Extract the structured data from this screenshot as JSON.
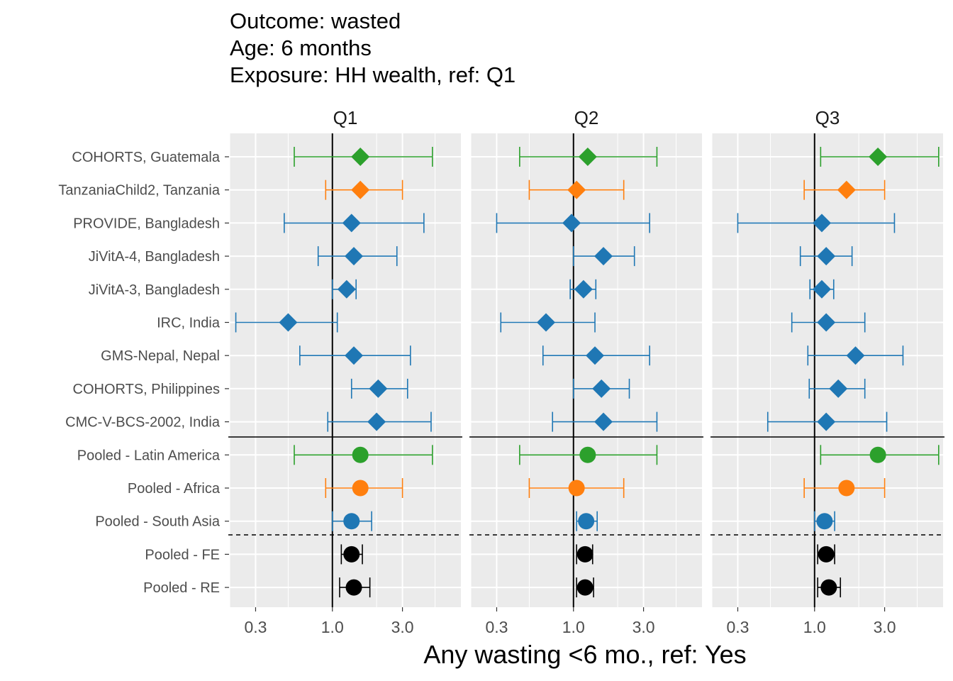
{
  "chart_data": {
    "type": "forest",
    "title_lines": [
      "Outcome: wasted",
      "Age: 6 months",
      "Exposure: HH wealth, ref: Q1"
    ],
    "xlabel": "Any wasting  <6 mo., ref: Yes",
    "ylabel": "",
    "x_scale": "log10",
    "xlim": [
      0.2,
      7.5
    ],
    "x_ticks": [
      {
        "value": 0.3,
        "label": "0.3"
      },
      {
        "value": 1.0,
        "label": "1.0"
      },
      {
        "value": 3.0,
        "label": "3.0"
      }
    ],
    "reference_line": 1.0,
    "grid": true,
    "rows": [
      {
        "label": "COHORTS, Guatemala",
        "region": "latin_america",
        "kind": "study"
      },
      {
        "label": "TanzaniaChild2, Tanzania",
        "region": "africa",
        "kind": "study"
      },
      {
        "label": "PROVIDE, Bangladesh",
        "region": "south_asia",
        "kind": "study"
      },
      {
        "label": "JiVitA-4, Bangladesh",
        "region": "south_asia",
        "kind": "study"
      },
      {
        "label": "JiVitA-3, Bangladesh",
        "region": "south_asia",
        "kind": "study"
      },
      {
        "label": "IRC, India",
        "region": "south_asia",
        "kind": "study"
      },
      {
        "label": "GMS-Nepal, Nepal",
        "region": "south_asia",
        "kind": "study"
      },
      {
        "label": "COHORTS, Philippines",
        "region": "south_asia",
        "kind": "study"
      },
      {
        "label": "CMC-V-BCS-2002, India",
        "region": "south_asia",
        "kind": "study"
      },
      {
        "label": "Pooled - Latin America",
        "region": "latin_america",
        "kind": "pooled"
      },
      {
        "label": "Pooled - Africa",
        "region": "africa",
        "kind": "pooled"
      },
      {
        "label": "Pooled - South Asia",
        "region": "south_asia",
        "kind": "pooled"
      },
      {
        "label": "Pooled - FE",
        "region": "overall",
        "kind": "pooled"
      },
      {
        "label": "Pooled - RE",
        "region": "overall",
        "kind": "pooled"
      }
    ],
    "colors": {
      "latin_america": "#2ca02c",
      "africa": "#ff7f0e",
      "south_asia": "#1f77b4",
      "overall": "#000000"
    },
    "panel_background": "#ebebeb",
    "grid_color": "#ffffff",
    "panels": [
      {
        "label": "Q1",
        "estimates": [
          {
            "est": 1.55,
            "lo": 0.55,
            "hi": 4.8
          },
          {
            "est": 1.55,
            "lo": 0.9,
            "hi": 3.0
          },
          {
            "est": 1.35,
            "lo": 0.47,
            "hi": 4.2
          },
          {
            "est": 1.4,
            "lo": 0.8,
            "hi": 2.75
          },
          {
            "est": 1.25,
            "lo": 1.0,
            "hi": 1.45
          },
          {
            "est": 0.5,
            "lo": 0.22,
            "hi": 1.08
          },
          {
            "est": 1.4,
            "lo": 0.6,
            "hi": 3.4
          },
          {
            "est": 2.05,
            "lo": 1.35,
            "hi": 3.25
          },
          {
            "est": 2.0,
            "lo": 0.93,
            "hi": 4.7
          },
          {
            "est": 1.55,
            "lo": 0.55,
            "hi": 4.8
          },
          {
            "est": 1.55,
            "lo": 0.9,
            "hi": 3.0
          },
          {
            "est": 1.35,
            "lo": 1.0,
            "hi": 1.85
          },
          {
            "est": 1.35,
            "lo": 1.15,
            "hi": 1.6
          },
          {
            "est": 1.4,
            "lo": 1.12,
            "hi": 1.8
          }
        ]
      },
      {
        "label": "Q2",
        "estimates": [
          {
            "est": 1.25,
            "lo": 0.43,
            "hi": 3.7
          },
          {
            "est": 1.05,
            "lo": 0.5,
            "hi": 2.2
          },
          {
            "est": 0.97,
            "lo": 0.3,
            "hi": 3.3
          },
          {
            "est": 1.6,
            "lo": 1.0,
            "hi": 2.6
          },
          {
            "est": 1.17,
            "lo": 0.95,
            "hi": 1.42
          },
          {
            "est": 0.65,
            "lo": 0.32,
            "hi": 1.4
          },
          {
            "est": 1.4,
            "lo": 0.62,
            "hi": 3.3
          },
          {
            "est": 1.55,
            "lo": 1.0,
            "hi": 2.4
          },
          {
            "est": 1.6,
            "lo": 0.72,
            "hi": 3.7
          },
          {
            "est": 1.25,
            "lo": 0.43,
            "hi": 3.7
          },
          {
            "est": 1.05,
            "lo": 0.5,
            "hi": 2.2
          },
          {
            "est": 1.22,
            "lo": 1.05,
            "hi": 1.45
          },
          {
            "est": 1.2,
            "lo": 1.05,
            "hi": 1.35
          },
          {
            "est": 1.2,
            "lo": 1.05,
            "hi": 1.37
          }
        ]
      },
      {
        "label": "Q3",
        "estimates": [
          {
            "est": 2.7,
            "lo": 1.1,
            "hi": 7.0
          },
          {
            "est": 1.65,
            "lo": 0.85,
            "hi": 3.0
          },
          {
            "est": 1.12,
            "lo": 0.3,
            "hi": 3.5
          },
          {
            "est": 1.2,
            "lo": 0.8,
            "hi": 1.8
          },
          {
            "est": 1.12,
            "lo": 0.93,
            "hi": 1.35
          },
          {
            "est": 1.2,
            "lo": 0.7,
            "hi": 2.2
          },
          {
            "est": 1.9,
            "lo": 0.9,
            "hi": 4.0
          },
          {
            "est": 1.45,
            "lo": 0.92,
            "hi": 2.2
          },
          {
            "est": 1.2,
            "lo": 0.48,
            "hi": 3.1
          },
          {
            "est": 2.7,
            "lo": 1.1,
            "hi": 7.0
          },
          {
            "est": 1.65,
            "lo": 0.85,
            "hi": 3.0
          },
          {
            "est": 1.17,
            "lo": 1.0,
            "hi": 1.37
          },
          {
            "est": 1.2,
            "lo": 1.05,
            "hi": 1.37
          },
          {
            "est": 1.25,
            "lo": 1.05,
            "hi": 1.5
          }
        ]
      }
    ]
  }
}
